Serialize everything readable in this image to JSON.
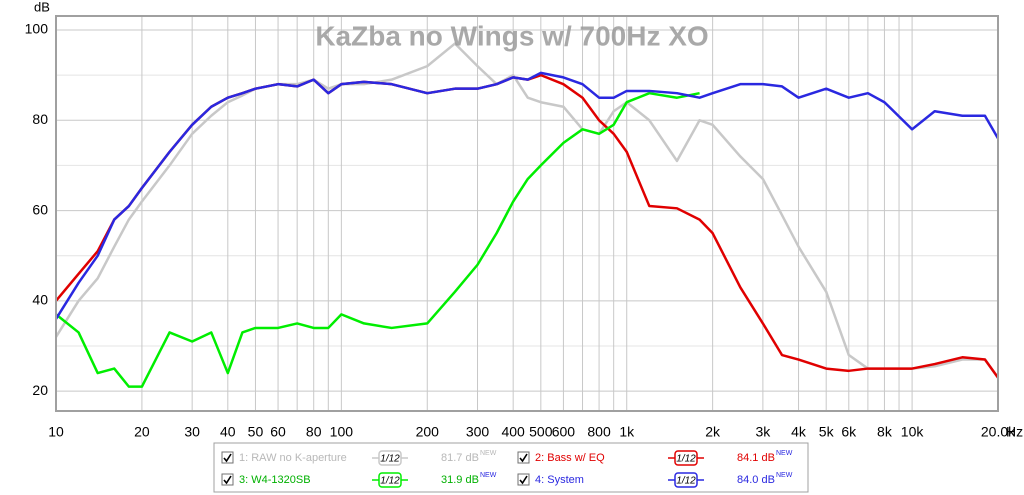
{
  "chart_data": {
    "type": "line",
    "title": "KaZba no Wings w/ 700Hz XO",
    "y_label": "dB",
    "x_unit": "Hz",
    "x_log": true,
    "grid": true,
    "xlim": [
      10,
      20000
    ],
    "ylim": [
      15.6,
      103.1
    ],
    "xticks": [
      10,
      20,
      30,
      40,
      50,
      60,
      {
        "value": 70,
        "label": null
      },
      80,
      {
        "value": 90,
        "label": null
      },
      100,
      200,
      300,
      400,
      500,
      600,
      {
        "value": 700,
        "label": null
      },
      800,
      {
        "value": 900,
        "label": null
      },
      {
        "value": 1000,
        "label": "1k"
      },
      {
        "value": 2000,
        "label": "2k"
      },
      {
        "value": 3000,
        "label": "3k"
      },
      {
        "value": 4000,
        "label": "4k"
      },
      {
        "value": 5000,
        "label": "5k"
      },
      {
        "value": 6000,
        "label": "6k"
      },
      {
        "value": 7000,
        "label": null
      },
      {
        "value": 8000,
        "label": "8k"
      },
      {
        "value": 9000,
        "label": null
      },
      {
        "value": 10000,
        "label": "10k"
      },
      {
        "value": 20000,
        "label": "20.0k"
      }
    ],
    "yticks": [
      20,
      {
        "value": 30,
        "label": null
      },
      40,
      {
        "value": 50,
        "label": null
      },
      60,
      {
        "value": 70,
        "label": null
      },
      80,
      {
        "value": 90,
        "label": null
      },
      100
    ],
    "x": [
      10,
      12,
      14,
      16,
      18,
      20,
      25,
      30,
      35,
      40,
      45,
      50,
      60,
      70,
      80,
      90,
      100,
      120,
      150,
      200,
      250,
      300,
      350,
      400,
      450,
      500,
      600,
      700,
      800,
      900,
      1000,
      1200,
      1500,
      1800,
      2000,
      2500,
      3000,
      3500,
      4000,
      5000,
      6000,
      7000,
      8000,
      10000,
      12000,
      15000,
      18000,
      20000
    ],
    "series": [
      {
        "name": "1: RAW no K-aperture",
        "color": "#c8c8c8",
        "smoothing": "1/12",
        "level": "81.7 dB",
        "badge": "NEW",
        "values": [
          32,
          40,
          45,
          52,
          58,
          62,
          70,
          77,
          81,
          84,
          85.5,
          87,
          88,
          88,
          89,
          87,
          88,
          88,
          89,
          92,
          97,
          92,
          88,
          90,
          85,
          84,
          83,
          78,
          77,
          82,
          84,
          80,
          71,
          80,
          79,
          72,
          67,
          59,
          52,
          42,
          28,
          25,
          25,
          25,
          25.5,
          27,
          27,
          23
        ]
      },
      {
        "name": "2: Bass w/ EQ",
        "color": "#e00000",
        "smoothing": "1/12",
        "level": "84.1 dB",
        "badge": "NEW",
        "values": [
          40,
          46,
          51,
          58,
          61,
          65,
          73,
          79,
          83,
          85,
          86,
          87,
          88,
          87.5,
          89,
          86,
          88,
          88.5,
          88,
          86,
          87,
          87,
          88,
          89.5,
          89,
          90,
          88,
          85,
          80,
          77,
          73,
          61,
          60.5,
          58,
          55,
          43,
          35,
          28,
          27,
          25,
          24.5,
          25,
          25,
          25,
          26,
          27.5,
          27,
          23
        ]
      },
      {
        "name": "3: W4-1320SB",
        "color": "#00ee00",
        "smoothing": "1/12",
        "level": "31.9 dB",
        "badge": "NEW",
        "values": [
          37,
          33,
          24,
          25,
          21,
          21,
          33,
          31,
          33,
          24,
          33,
          34,
          34,
          35,
          34,
          34,
          37,
          35,
          34,
          35,
          42,
          48,
          55,
          62,
          67,
          70,
          75,
          78,
          77,
          79,
          84,
          86,
          85,
          86,
          null,
          null,
          null,
          null,
          null,
          null,
          null,
          null,
          null,
          null,
          null,
          null,
          null,
          null
        ]
      },
      {
        "name": "4: System",
        "color": "#2a28e0",
        "smoothing": "1/12",
        "level": "84.0 dB",
        "badge": "NEW",
        "values": [
          36,
          44,
          50,
          58,
          61,
          65,
          73,
          79,
          83,
          85,
          86,
          87,
          88,
          87.5,
          89,
          86,
          88,
          88.5,
          88,
          86,
          87,
          87,
          88,
          89.5,
          89,
          90.5,
          89.5,
          88,
          85,
          85,
          86.5,
          86.5,
          86,
          85,
          86,
          88,
          88,
          87.5,
          85,
          87,
          85,
          86,
          84,
          78,
          82,
          81,
          81,
          76
        ]
      }
    ]
  }
}
